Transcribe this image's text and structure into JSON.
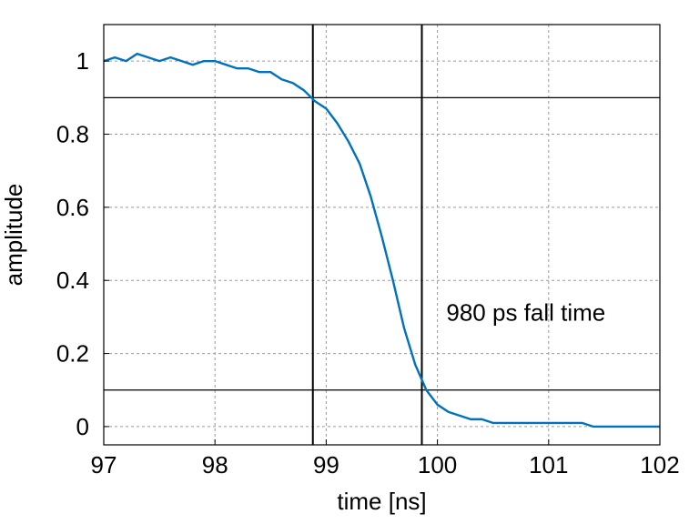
{
  "chart_data": {
    "type": "line",
    "title": "",
    "xlabel": "time [ns]",
    "ylabel": "amplitude",
    "xlim": [
      97,
      102
    ],
    "ylim": [
      -0.05,
      1.1
    ],
    "x_ticks": [
      97,
      98,
      99,
      100,
      101,
      102
    ],
    "x_tick_labels": [
      "97",
      "98",
      "99",
      "100",
      "101",
      "102"
    ],
    "y_ticks": [
      0,
      0.2,
      0.4,
      0.6,
      0.8,
      1
    ],
    "y_tick_labels": [
      "0",
      "0.2",
      "0.4",
      "0.6",
      "0.8",
      "1"
    ],
    "grid": true,
    "series": [
      {
        "color": "#0072BD",
        "x": [
          97.0,
          97.1,
          97.2,
          97.3,
          97.4,
          97.5,
          97.6,
          97.7,
          97.8,
          97.9,
          98.0,
          98.1,
          98.2,
          98.3,
          98.4,
          98.5,
          98.6,
          98.7,
          98.8,
          98.9,
          99.0,
          99.1,
          99.2,
          99.3,
          99.4,
          99.5,
          99.6,
          99.7,
          99.8,
          99.9,
          100.0,
          100.1,
          100.2,
          100.3,
          100.4,
          100.5,
          100.6,
          100.7,
          100.8,
          100.9,
          101.0,
          101.1,
          101.2,
          101.3,
          101.4,
          101.5,
          101.6,
          101.7,
          101.8,
          101.9,
          102.0
        ],
        "y": [
          1.0,
          1.01,
          1.0,
          1.02,
          1.01,
          1.0,
          1.01,
          1.0,
          0.99,
          1.0,
          1.0,
          0.99,
          0.98,
          0.98,
          0.97,
          0.97,
          0.95,
          0.94,
          0.92,
          0.89,
          0.87,
          0.83,
          0.78,
          0.72,
          0.63,
          0.52,
          0.4,
          0.27,
          0.17,
          0.1,
          0.06,
          0.04,
          0.03,
          0.02,
          0.02,
          0.01,
          0.01,
          0.01,
          0.01,
          0.01,
          0.01,
          0.01,
          0.01,
          0.01,
          0.0,
          0.0,
          0.0,
          0.0,
          0.0,
          0.0,
          0.0
        ]
      }
    ],
    "threshold_lines": {
      "y": [
        0.9,
        0.1
      ],
      "x": [
        98.88,
        99.86
      ],
      "color": "#000000"
    },
    "annotations": [
      {
        "text": "980 ps fall time",
        "x": 100.08,
        "y": 0.29
      }
    ]
  }
}
